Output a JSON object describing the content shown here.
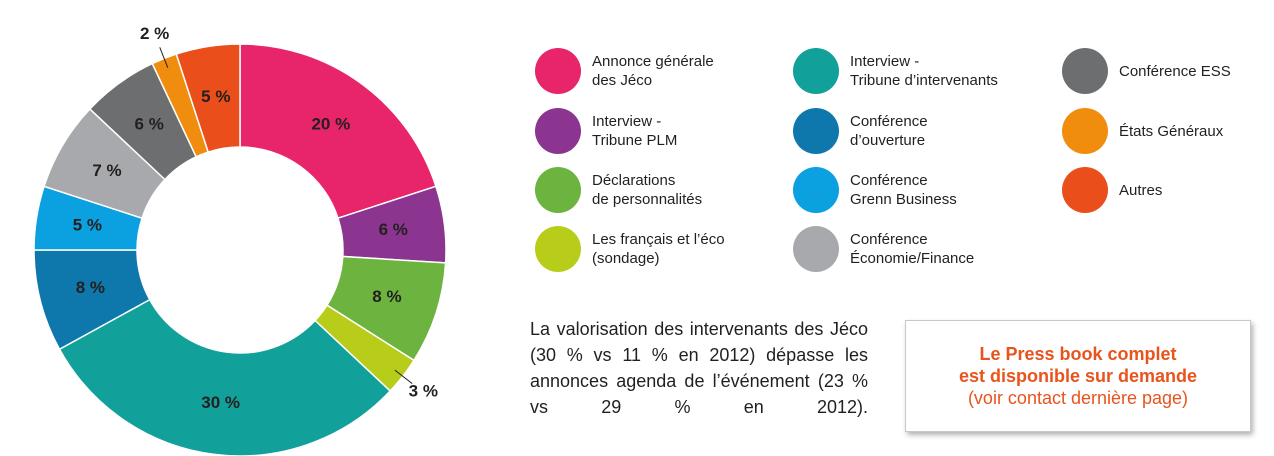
{
  "chart_data": {
    "type": "donut",
    "categories": [
      "Annonce générale\ndes Jéco",
      "Interview -\nTribune PLM",
      "Déclarations\nde personnalités",
      "Les français et l’éco\n(sondage)",
      "Interview -\nTribune d’intervenants",
      "Conférence\nd’ouverture",
      "Conférence\nGrenn Business",
      "Conférence\nÉconomie/Finance",
      "Conférence ESS",
      "États Généraux",
      "Autres"
    ],
    "values": [
      20,
      6,
      8,
      3,
      30,
      8,
      5,
      7,
      6,
      2,
      5
    ],
    "value_labels": [
      "20 %",
      "6 %",
      "8 %",
      "3 %",
      "30 %",
      "8 %",
      "5 %",
      "7 %",
      "6 %",
      "2 %",
      "5 %"
    ],
    "colors": [
      "#e8246a",
      "#8b3590",
      "#6db33f",
      "#b8cc1a",
      "#12a19a",
      "#0e78ad",
      "#0ba0e0",
      "#a7a9ac",
      "#6d6e70",
      "#f08c0e",
      "#e94e1b"
    ]
  },
  "note": "La valorisation des intervenants des Jéco (30 % vs 11 % en 2012) dépasse les annonces agenda de l’événement (23 % vs 29 % en 2012).",
  "callout": {
    "lines_bold": [
      "Le Press book complet",
      "est disponible sur demande"
    ],
    "line": "(voir contact dernière page)"
  }
}
